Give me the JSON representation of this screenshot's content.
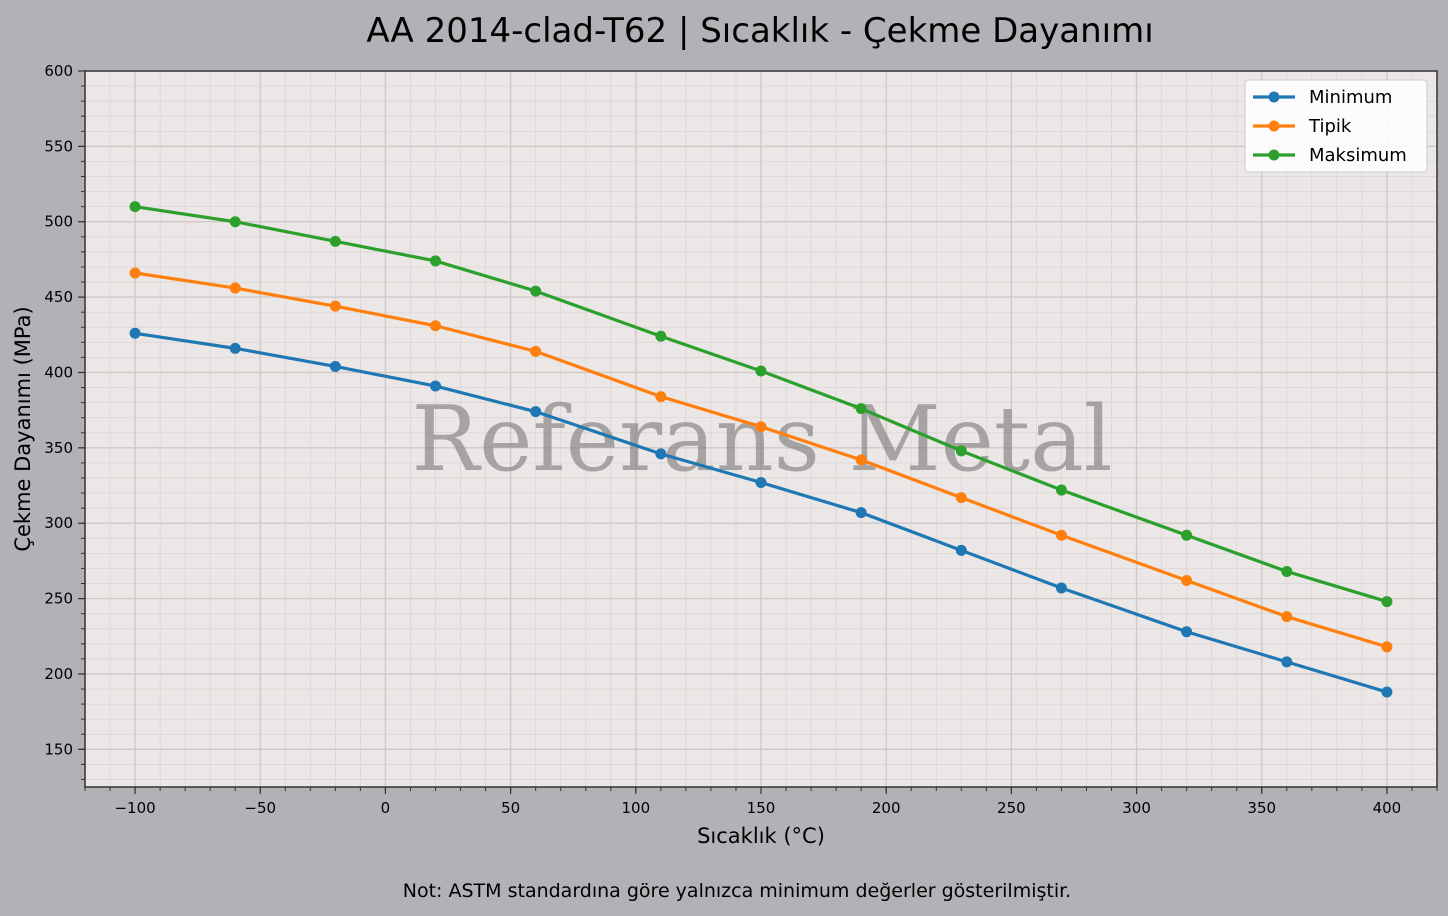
{
  "chart_data": {
    "type": "line",
    "title": "AA 2014-clad-T62 | Sıcaklık - Çekme Dayanımı",
    "xlabel": "Sıcaklık (°C)",
    "ylabel": "Çekme Dayanımı (MPa)",
    "xlim": [
      -120,
      420
    ],
    "ylim": [
      125,
      600
    ],
    "xticks": [
      -100,
      -50,
      0,
      50,
      100,
      150,
      200,
      250,
      300,
      350,
      400
    ],
    "xtick_labels": [
      "−100",
      "−50",
      "0",
      "50",
      "100",
      "150",
      "200",
      "250",
      "300",
      "350",
      "400"
    ],
    "yticks": [
      150,
      200,
      250,
      300,
      350,
      400,
      450,
      500,
      550,
      600
    ],
    "grid": true,
    "legend_position": "top-right",
    "x": [
      -100,
      -60,
      -20,
      20,
      60,
      110,
      150,
      190,
      230,
      270,
      320,
      360,
      400
    ],
    "series": [
      {
        "name": "Minimum",
        "color": "#1f77b4",
        "values": [
          426,
          416,
          404,
          391,
          374,
          346,
          327,
          307,
          282,
          257,
          228,
          208,
          188
        ]
      },
      {
        "name": "Tipik",
        "color": "#ff7f0e",
        "values": [
          466,
          456,
          444,
          431,
          414,
          384,
          364,
          342,
          317,
          292,
          262,
          238,
          218
        ]
      },
      {
        "name": "Maksimum",
        "color": "#2ca02c",
        "values": [
          510,
          500,
          487,
          474,
          454,
          424,
          401,
          376,
          348,
          322,
          292,
          268,
          248
        ]
      }
    ],
    "watermark": "Referans Metal",
    "note": "Not: ASTM standardına göre yalnızca minimum değerler gösterilmiştir."
  }
}
